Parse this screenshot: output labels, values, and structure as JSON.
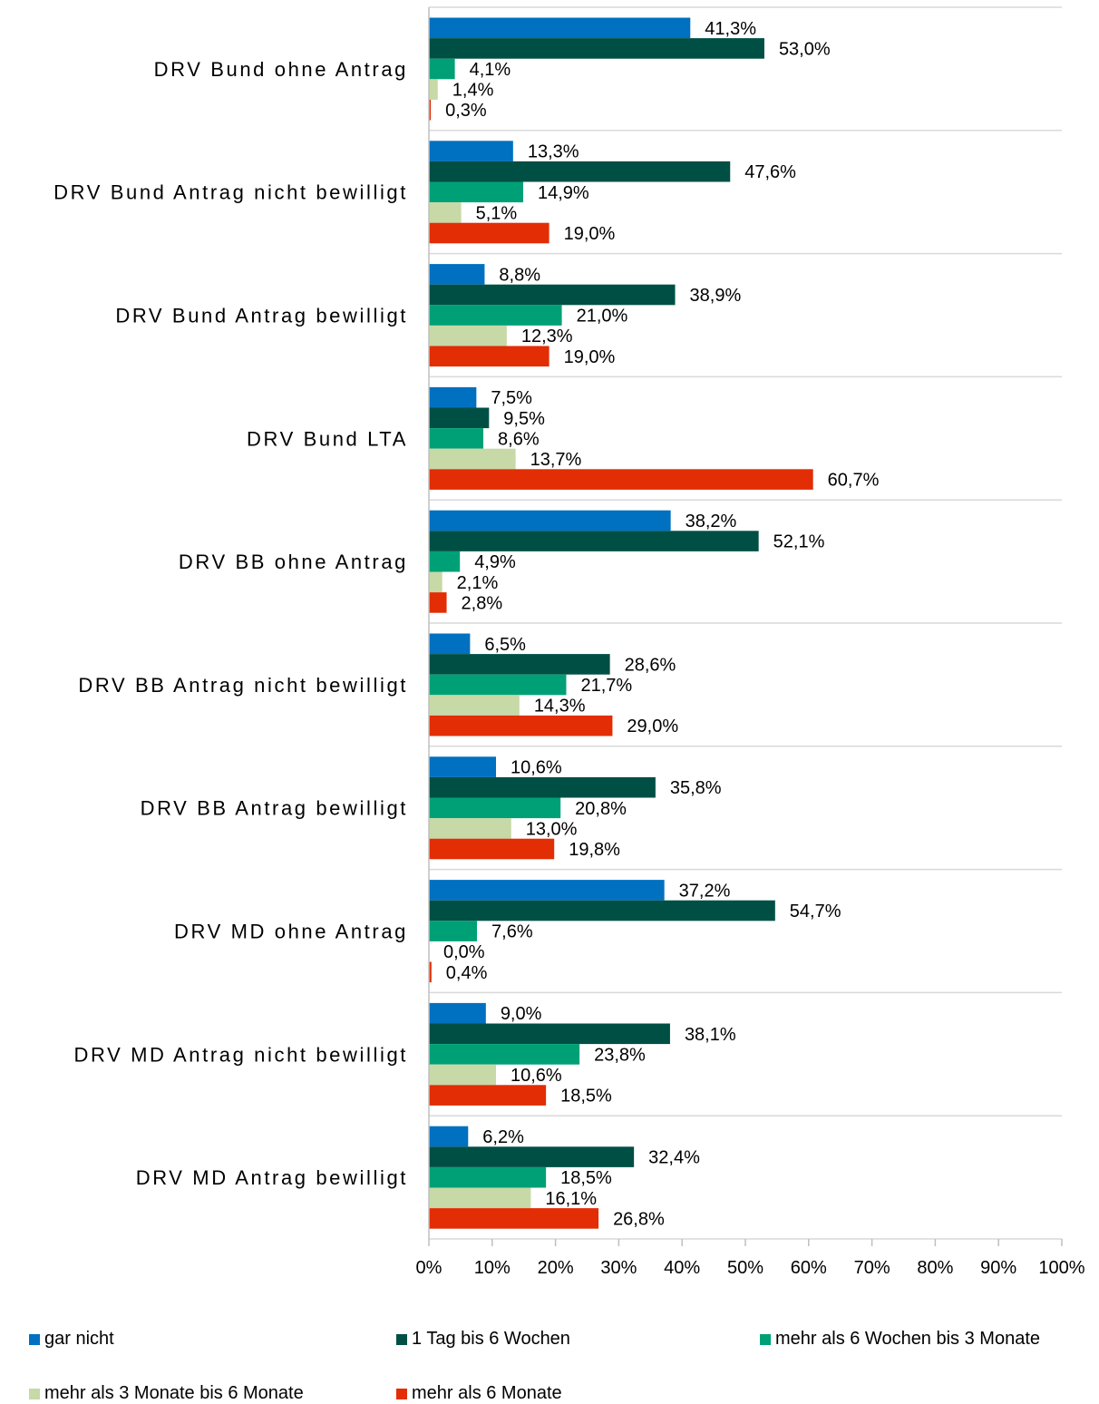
{
  "chart_data": {
    "type": "bar",
    "orientation": "horizontal",
    "categories": [
      "DRV Bund ohne Antrag",
      "DRV Bund Antrag nicht bewilligt",
      "DRV Bund Antrag bewilligt",
      "DRV Bund LTA",
      "DRV BB ohne Antrag",
      "DRV BB Antrag nicht bewilligt",
      "DRV BB Antrag bewilligt",
      "DRV MD ohne Antrag",
      "DRV MD Antrag nicht bewilligt",
      "DRV MD Antrag bewilligt"
    ],
    "series": [
      {
        "name": "gar nicht",
        "color": "#0070C0",
        "values": [
          41.3,
          13.3,
          8.8,
          7.5,
          38.2,
          6.5,
          10.6,
          37.2,
          9.0,
          6.2
        ],
        "labels": [
          "41,3%",
          "13,3%",
          "8,8%",
          "7,5%",
          "38,2%",
          "6,5%",
          "10,6%",
          "37,2%",
          "9,0%",
          "6,2%"
        ]
      },
      {
        "name": "1 Tag bis 6 Wochen",
        "color": "#004F45",
        "values": [
          53.0,
          47.6,
          38.9,
          9.5,
          52.1,
          28.6,
          35.8,
          54.7,
          38.1,
          32.4
        ],
        "labels": [
          "53,0%",
          "47,6%",
          "38,9%",
          "9,5%",
          "52,1%",
          "28,6%",
          "35,8%",
          "54,7%",
          "38,1%",
          "32,4%"
        ]
      },
      {
        "name": "mehr als 6 Wochen bis 3 Monate",
        "color": "#00A077",
        "values": [
          4.1,
          14.9,
          21.0,
          8.6,
          4.9,
          21.7,
          20.8,
          7.6,
          23.8,
          18.5
        ],
        "labels": [
          "4,1%",
          "14,9%",
          "21,0%",
          "8,6%",
          "4,9%",
          "21,7%",
          "20,8%",
          "7,6%",
          "23,8%",
          "18,5%"
        ]
      },
      {
        "name": "mehr als 3 Monate bis 6 Monate",
        "color": "#C6D9A6",
        "values": [
          1.4,
          5.1,
          12.3,
          13.7,
          2.1,
          14.3,
          13.0,
          0.0,
          10.6,
          16.1
        ],
        "labels": [
          "1,4%",
          "5,1%",
          "12,3%",
          "13,7%",
          "2,1%",
          "14,3%",
          "13,0%",
          "0,0%",
          "10,6%",
          "16,1%"
        ]
      },
      {
        "name": "mehr als 6 Monate",
        "color": "#E22D05",
        "values": [
          0.3,
          19.0,
          19.0,
          60.7,
          2.8,
          29.0,
          19.8,
          0.4,
          18.5,
          26.8
        ],
        "labels": [
          "0,3%",
          "19,0%",
          "19,0%",
          "60,7%",
          "2,8%",
          "29,0%",
          "19,8%",
          "0,4%",
          "18,5%",
          "26,8%"
        ]
      }
    ],
    "xlim": [
      0,
      100
    ],
    "x_ticks": [
      0,
      10,
      20,
      30,
      40,
      50,
      60,
      70,
      80,
      90,
      100
    ],
    "x_tick_labels": [
      "0%",
      "10%",
      "20%",
      "30%",
      "40%",
      "50%",
      "60%",
      "70%",
      "80%",
      "90%",
      "100%"
    ],
    "title": "",
    "xlabel": "",
    "ylabel": "",
    "grid": "horizontal separators between categories",
    "legend_position": "bottom"
  }
}
